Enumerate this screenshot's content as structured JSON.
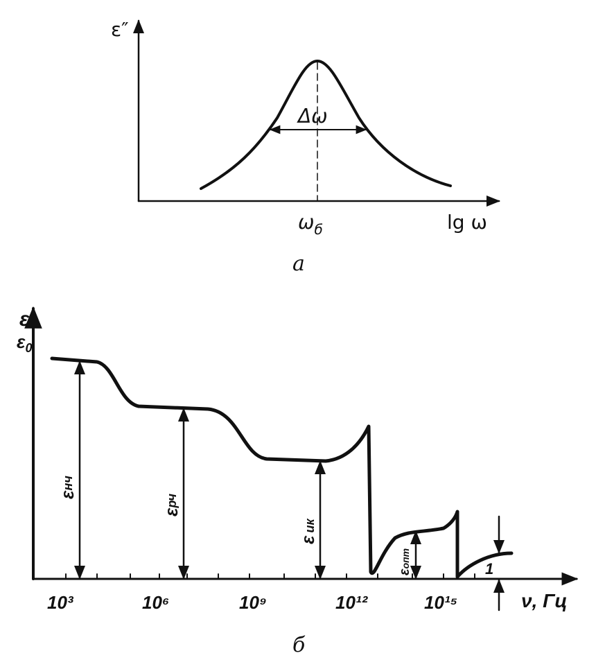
{
  "panel_a": {
    "y_label": "ε″",
    "width_label": "Δω",
    "peak_label": {
      "symbol": "ω",
      "subscript": "б"
    },
    "x_label": "lg ω",
    "caption": "а"
  },
  "panel_b": {
    "y_label": "ε",
    "y_level_label": {
      "symbol": "ε",
      "subscript": "0"
    },
    "x_tick_labels": [
      "10³",
      "10⁶",
      "10⁹",
      "10¹²",
      "10¹⁵"
    ],
    "x_label": "ν, Гц",
    "levels": [
      {
        "symbol": "ε",
        "subscript": "нч"
      },
      {
        "symbol": "ε",
        "subscript": "рч"
      },
      {
        "symbol": "ε",
        "subscript": "ик"
      },
      {
        "symbol": "ε",
        "subscript": "опт"
      }
    ],
    "unity_label": "1",
    "caption": "б"
  }
}
